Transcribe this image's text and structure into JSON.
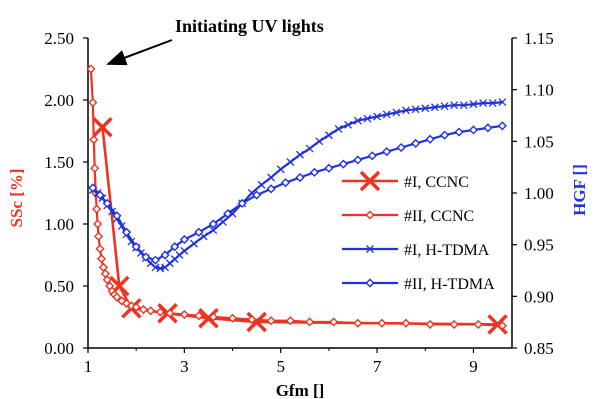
{
  "chart_data": {
    "type": "line",
    "title": "",
    "annotation": "Initiating UV lights",
    "xlabel": "Gfm []",
    "ylabel_left": "SSc [%]",
    "ylabel_right": "HGF []",
    "xlim": [
      1,
      9.8
    ],
    "ylim_left": [
      0.0,
      2.5
    ],
    "ylim_right": [
      0.85,
      1.15
    ],
    "x_ticks": [
      "1",
      "3",
      "5",
      "7",
      "9"
    ],
    "y_left_ticks": [
      "0.00",
      "0.50",
      "1.00",
      "1.50",
      "2.00",
      "2.50"
    ],
    "y_right_ticks": [
      "0.85",
      "0.90",
      "0.95",
      "1.00",
      "1.05",
      "1.10",
      "1.15"
    ],
    "grid": false,
    "legend_position": "right-middle",
    "colors": {
      "red": "#ee3322",
      "blue": "#2233dd",
      "axis": "#000000"
    },
    "series": [
      {
        "name": "#I, CCNC",
        "axis": "left",
        "color": "#ee3322",
        "marker": "x-large",
        "x": [
          1.3,
          1.65,
          1.9,
          2.65,
          3.5,
          4.5,
          9.5
        ],
        "y": [
          1.78,
          0.5,
          0.32,
          0.28,
          0.24,
          0.21,
          0.19
        ]
      },
      {
        "name": "#II, CCNC",
        "axis": "left",
        "color": "#ee3322",
        "marker": "diamond",
        "x": [
          1.06,
          1.1,
          1.12,
          1.14,
          1.16,
          1.18,
          1.2,
          1.22,
          1.25,
          1.28,
          1.32,
          1.36,
          1.4,
          1.45,
          1.5,
          1.55,
          1.6,
          1.7,
          1.8,
          1.9,
          2.0,
          2.15,
          2.3,
          2.5,
          2.7,
          3.0,
          3.3,
          3.6,
          4.0,
          4.4,
          4.8,
          5.2,
          5.6,
          6.1,
          6.6,
          7.1,
          7.6,
          8.1,
          8.6,
          9.1,
          9.6
        ],
        "y": [
          2.25,
          1.98,
          1.68,
          1.45,
          1.25,
          1.12,
          1.0,
          0.9,
          0.8,
          0.72,
          0.65,
          0.6,
          0.55,
          0.5,
          0.46,
          0.43,
          0.41,
          0.38,
          0.36,
          0.34,
          0.33,
          0.31,
          0.3,
          0.29,
          0.28,
          0.27,
          0.26,
          0.25,
          0.24,
          0.23,
          0.22,
          0.22,
          0.21,
          0.21,
          0.2,
          0.2,
          0.2,
          0.19,
          0.19,
          0.19,
          0.18
        ]
      },
      {
        "name": "#I, H-TDMA",
        "axis": "right",
        "color": "#2233dd",
        "marker": "x",
        "x": [
          1.1,
          1.2,
          1.3,
          1.4,
          1.5,
          1.6,
          1.7,
          1.8,
          1.9,
          2.0,
          2.1,
          2.2,
          2.3,
          2.4,
          2.5,
          2.6,
          2.7,
          2.8,
          2.9,
          3.0,
          3.2,
          3.4,
          3.6,
          3.8,
          4.0,
          4.2,
          4.4,
          4.6,
          4.8,
          5.0,
          5.2,
          5.4,
          5.6,
          5.8,
          6.0,
          6.2,
          6.4,
          6.6,
          6.8,
          7.0,
          7.2,
          7.4,
          7.6,
          7.8,
          8.0,
          8.2,
          8.4,
          8.6,
          8.8,
          9.0,
          9.2,
          9.4,
          9.6
        ],
        "y": [
          1.003,
          1.0,
          0.995,
          0.988,
          0.982,
          0.975,
          0.968,
          0.96,
          0.953,
          0.947,
          0.942,
          0.937,
          0.932,
          0.928,
          0.927,
          0.928,
          0.932,
          0.936,
          0.94,
          0.944,
          0.951,
          0.958,
          0.964,
          0.972,
          0.98,
          0.99,
          1.0,
          1.008,
          1.015,
          1.023,
          1.03,
          1.037,
          1.043,
          1.05,
          1.056,
          1.062,
          1.066,
          1.07,
          1.072,
          1.074,
          1.076,
          1.078,
          1.08,
          1.081,
          1.082,
          1.083,
          1.084,
          1.085,
          1.085,
          1.086,
          1.087,
          1.087,
          1.088
        ]
      },
      {
        "name": "#II, H-TDMA",
        "axis": "right",
        "color": "#2233dd",
        "marker": "diamond",
        "x": [
          1.1,
          1.25,
          1.4,
          1.6,
          1.8,
          2.0,
          2.2,
          2.4,
          2.6,
          2.8,
          3.0,
          3.3,
          3.6,
          3.9,
          4.2,
          4.5,
          4.8,
          5.1,
          5.4,
          5.7,
          6.0,
          6.3,
          6.6,
          6.9,
          7.2,
          7.5,
          7.8,
          8.1,
          8.4,
          8.7,
          9.0,
          9.3,
          9.6
        ],
        "y": [
          1.005,
          0.998,
          0.99,
          0.978,
          0.962,
          0.948,
          0.938,
          0.935,
          0.94,
          0.948,
          0.955,
          0.962,
          0.97,
          0.98,
          0.99,
          0.998,
          1.004,
          1.01,
          1.015,
          1.02,
          1.024,
          1.028,
          1.032,
          1.036,
          1.04,
          1.044,
          1.048,
          1.052,
          1.056,
          1.059,
          1.061,
          1.063,
          1.065
        ]
      }
    ]
  }
}
